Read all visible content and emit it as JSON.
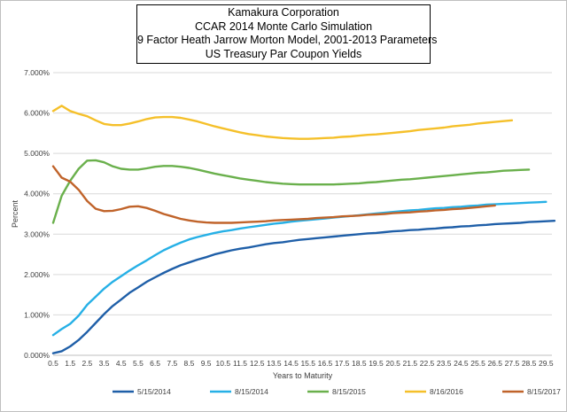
{
  "chart_data": {
    "type": "line",
    "title_lines": [
      "Kamakura Corporation",
      "CCAR 2014 Monte Carlo Simulation",
      "9 Factor Heath Jarrow Morton Model, 2001-2013 Parameters",
      "US Treasury Par Coupon Yields"
    ],
    "xlabel": "Years to Maturity",
    "ylabel": "Percent",
    "ylim": [
      0,
      7
    ],
    "yticks": [
      0,
      1,
      2,
      3,
      4,
      5,
      6,
      7
    ],
    "ytick_labels": [
      "0.000%",
      "1.000%",
      "2.000%",
      "3.000%",
      "4.000%",
      "5.000%",
      "6.000%",
      "7.000%"
    ],
    "xlim": [
      0.5,
      30
    ],
    "xticks": [
      0.5,
      1.5,
      2.5,
      3.5,
      4.5,
      5.5,
      6.5,
      7.5,
      8.5,
      9.5,
      10.5,
      11.5,
      12.5,
      13.5,
      14.5,
      15.5,
      16.5,
      17.5,
      18.5,
      19.5,
      20.5,
      21.5,
      22.5,
      23.5,
      24.5,
      25.5,
      26.5,
      27.5,
      28.5,
      29.5
    ],
    "xtick_labels": [
      "0.5",
      "1.5",
      "2.5",
      "3.5",
      "4.5",
      "5.5",
      "6.5",
      "7.5",
      "8.5",
      "9.5",
      "10.5",
      "11.5",
      "12.5",
      "13.5",
      "14.5",
      "15.5",
      "16.5",
      "17.5",
      "18.5",
      "19.5",
      "20.5",
      "21.5",
      "22.5",
      "23.5",
      "24.5",
      "25.5",
      "26.5",
      "27.5",
      "28.5",
      "29.5"
    ],
    "grid": "horizontal",
    "legend_position": "bottom",
    "series": [
      {
        "name": "5/15/2014",
        "color": "#1f5fa8",
        "points": [
          [
            0.5,
            0.05
          ],
          [
            1,
            0.1
          ],
          [
            1.5,
            0.22
          ],
          [
            2,
            0.38
          ],
          [
            2.5,
            0.58
          ],
          [
            3,
            0.8
          ],
          [
            3.5,
            1.02
          ],
          [
            4,
            1.22
          ],
          [
            4.5,
            1.38
          ],
          [
            5,
            1.55
          ],
          [
            5.5,
            1.68
          ],
          [
            6,
            1.82
          ],
          [
            6.5,
            1.93
          ],
          [
            7,
            2.04
          ],
          [
            7.5,
            2.14
          ],
          [
            8,
            2.23
          ],
          [
            8.5,
            2.3
          ],
          [
            9,
            2.37
          ],
          [
            9.5,
            2.43
          ],
          [
            10,
            2.5
          ],
          [
            10.5,
            2.55
          ],
          [
            11,
            2.6
          ],
          [
            11.5,
            2.64
          ],
          [
            12,
            2.67
          ],
          [
            12.5,
            2.71
          ],
          [
            13,
            2.75
          ],
          [
            13.5,
            2.78
          ],
          [
            14,
            2.8
          ],
          [
            14.5,
            2.83
          ],
          [
            15,
            2.86
          ],
          [
            15.5,
            2.88
          ],
          [
            16,
            2.9
          ],
          [
            16.5,
            2.92
          ],
          [
            17,
            2.94
          ],
          [
            17.5,
            2.96
          ],
          [
            18,
            2.98
          ],
          [
            18.5,
            3.0
          ],
          [
            19,
            3.02
          ],
          [
            19.5,
            3.03
          ],
          [
            20,
            3.05
          ],
          [
            20.5,
            3.07
          ],
          [
            21,
            3.08
          ],
          [
            21.5,
            3.1
          ],
          [
            22,
            3.11
          ],
          [
            22.5,
            3.13
          ],
          [
            23,
            3.14
          ],
          [
            23.5,
            3.16
          ],
          [
            24,
            3.17
          ],
          [
            24.5,
            3.19
          ],
          [
            25,
            3.2
          ],
          [
            25.5,
            3.22
          ],
          [
            26,
            3.23
          ],
          [
            26.5,
            3.25
          ],
          [
            27,
            3.26
          ],
          [
            27.5,
            3.27
          ],
          [
            28,
            3.28
          ],
          [
            28.5,
            3.3
          ],
          [
            29,
            3.31
          ],
          [
            29.5,
            3.32
          ],
          [
            30,
            3.33
          ]
        ]
      },
      {
        "name": "8/15/2014",
        "color": "#26b0e6",
        "points": [
          [
            0.5,
            0.5
          ],
          [
            1,
            0.65
          ],
          [
            1.5,
            0.78
          ],
          [
            2,
            0.98
          ],
          [
            2.5,
            1.25
          ],
          [
            3,
            1.45
          ],
          [
            3.5,
            1.65
          ],
          [
            4,
            1.82
          ],
          [
            4.5,
            1.96
          ],
          [
            5,
            2.1
          ],
          [
            5.5,
            2.23
          ],
          [
            6,
            2.35
          ],
          [
            6.5,
            2.48
          ],
          [
            7,
            2.6
          ],
          [
            7.5,
            2.7
          ],
          [
            8,
            2.79
          ],
          [
            8.5,
            2.87
          ],
          [
            9,
            2.93
          ],
          [
            9.5,
            2.98
          ],
          [
            10,
            3.03
          ],
          [
            10.5,
            3.07
          ],
          [
            11,
            3.1
          ],
          [
            11.5,
            3.14
          ],
          [
            12,
            3.17
          ],
          [
            12.5,
            3.2
          ],
          [
            13,
            3.23
          ],
          [
            13.5,
            3.26
          ],
          [
            14,
            3.28
          ],
          [
            14.5,
            3.31
          ],
          [
            15,
            3.33
          ],
          [
            15.5,
            3.35
          ],
          [
            16,
            3.37
          ],
          [
            16.5,
            3.39
          ],
          [
            17,
            3.41
          ],
          [
            17.5,
            3.43
          ],
          [
            18,
            3.45
          ],
          [
            18.5,
            3.47
          ],
          [
            19,
            3.49
          ],
          [
            19.5,
            3.51
          ],
          [
            20,
            3.53
          ],
          [
            20.5,
            3.55
          ],
          [
            21,
            3.57
          ],
          [
            21.5,
            3.59
          ],
          [
            22,
            3.6
          ],
          [
            22.5,
            3.62
          ],
          [
            23,
            3.64
          ],
          [
            23.5,
            3.65
          ],
          [
            24,
            3.67
          ],
          [
            24.5,
            3.68
          ],
          [
            25,
            3.7
          ],
          [
            25.5,
            3.71
          ],
          [
            26,
            3.73
          ],
          [
            26.5,
            3.74
          ],
          [
            27,
            3.75
          ],
          [
            27.5,
            3.76
          ],
          [
            28,
            3.77
          ],
          [
            28.5,
            3.78
          ],
          [
            29,
            3.79
          ],
          [
            29.5,
            3.8
          ]
        ]
      },
      {
        "name": "8/15/2015",
        "color": "#6ab04c",
        "points": [
          [
            0.5,
            3.28
          ],
          [
            1,
            3.95
          ],
          [
            1.5,
            4.32
          ],
          [
            2,
            4.62
          ],
          [
            2.5,
            4.82
          ],
          [
            3,
            4.83
          ],
          [
            3.5,
            4.78
          ],
          [
            4,
            4.68
          ],
          [
            4.5,
            4.62
          ],
          [
            5,
            4.6
          ],
          [
            5.5,
            4.6
          ],
          [
            6,
            4.63
          ],
          [
            6.5,
            4.67
          ],
          [
            7,
            4.69
          ],
          [
            7.5,
            4.69
          ],
          [
            8,
            4.67
          ],
          [
            8.5,
            4.64
          ],
          [
            9,
            4.6
          ],
          [
            9.5,
            4.55
          ],
          [
            10,
            4.5
          ],
          [
            10.5,
            4.46
          ],
          [
            11,
            4.42
          ],
          [
            11.5,
            4.38
          ],
          [
            12,
            4.35
          ],
          [
            12.5,
            4.32
          ],
          [
            13,
            4.29
          ],
          [
            13.5,
            4.27
          ],
          [
            14,
            4.25
          ],
          [
            14.5,
            4.24
          ],
          [
            15,
            4.23
          ],
          [
            15.5,
            4.23
          ],
          [
            16,
            4.23
          ],
          [
            16.5,
            4.23
          ],
          [
            17,
            4.23
          ],
          [
            17.5,
            4.24
          ],
          [
            18,
            4.25
          ],
          [
            18.5,
            4.26
          ],
          [
            19,
            4.28
          ],
          [
            19.5,
            4.29
          ],
          [
            20,
            4.31
          ],
          [
            20.5,
            4.33
          ],
          [
            21,
            4.35
          ],
          [
            21.5,
            4.36
          ],
          [
            22,
            4.38
          ],
          [
            22.5,
            4.4
          ],
          [
            23,
            4.42
          ],
          [
            23.5,
            4.44
          ],
          [
            24,
            4.46
          ],
          [
            24.5,
            4.48
          ],
          [
            25,
            4.5
          ],
          [
            25.5,
            4.52
          ],
          [
            26,
            4.53
          ],
          [
            26.5,
            4.55
          ],
          [
            27,
            4.57
          ],
          [
            27.5,
            4.58
          ],
          [
            28,
            4.59
          ],
          [
            28.5,
            4.6
          ]
        ]
      },
      {
        "name": "8/16/2016",
        "color": "#f5c02a",
        "points": [
          [
            0.5,
            6.05
          ],
          [
            1,
            6.18
          ],
          [
            1.5,
            6.05
          ],
          [
            2,
            5.98
          ],
          [
            2.5,
            5.92
          ],
          [
            3,
            5.82
          ],
          [
            3.5,
            5.73
          ],
          [
            4,
            5.7
          ],
          [
            4.5,
            5.7
          ],
          [
            5,
            5.74
          ],
          [
            5.5,
            5.79
          ],
          [
            6,
            5.85
          ],
          [
            6.5,
            5.89
          ],
          [
            7,
            5.9
          ],
          [
            7.5,
            5.9
          ],
          [
            8,
            5.88
          ],
          [
            8.5,
            5.84
          ],
          [
            9,
            5.79
          ],
          [
            9.5,
            5.73
          ],
          [
            10,
            5.67
          ],
          [
            10.5,
            5.62
          ],
          [
            11,
            5.57
          ],
          [
            11.5,
            5.52
          ],
          [
            12,
            5.48
          ],
          [
            12.5,
            5.45
          ],
          [
            13,
            5.42
          ],
          [
            13.5,
            5.4
          ],
          [
            14,
            5.38
          ],
          [
            14.5,
            5.37
          ],
          [
            15,
            5.36
          ],
          [
            15.5,
            5.36
          ],
          [
            16,
            5.37
          ],
          [
            16.5,
            5.38
          ],
          [
            17,
            5.39
          ],
          [
            17.5,
            5.41
          ],
          [
            18,
            5.42
          ],
          [
            18.5,
            5.44
          ],
          [
            19,
            5.46
          ],
          [
            19.5,
            5.47
          ],
          [
            20,
            5.49
          ],
          [
            20.5,
            5.51
          ],
          [
            21,
            5.53
          ],
          [
            21.5,
            5.55
          ],
          [
            22,
            5.58
          ],
          [
            22.5,
            5.6
          ],
          [
            23,
            5.62
          ],
          [
            23.5,
            5.64
          ],
          [
            24,
            5.67
          ],
          [
            24.5,
            5.69
          ],
          [
            25,
            5.71
          ],
          [
            25.5,
            5.74
          ],
          [
            26,
            5.76
          ],
          [
            26.5,
            5.78
          ],
          [
            27,
            5.8
          ],
          [
            27.5,
            5.82
          ]
        ]
      },
      {
        "name": "8/15/2017",
        "color": "#c0632a",
        "points": [
          [
            0.5,
            4.68
          ],
          [
            1,
            4.4
          ],
          [
            1.5,
            4.3
          ],
          [
            2,
            4.1
          ],
          [
            2.5,
            3.82
          ],
          [
            3,
            3.63
          ],
          [
            3.5,
            3.57
          ],
          [
            4,
            3.58
          ],
          [
            4.5,
            3.62
          ],
          [
            5,
            3.68
          ],
          [
            5.5,
            3.69
          ],
          [
            6,
            3.65
          ],
          [
            6.5,
            3.58
          ],
          [
            7,
            3.5
          ],
          [
            7.5,
            3.44
          ],
          [
            8,
            3.38
          ],
          [
            8.5,
            3.34
          ],
          [
            9,
            3.31
          ],
          [
            9.5,
            3.29
          ],
          [
            10,
            3.28
          ],
          [
            10.5,
            3.28
          ],
          [
            11,
            3.28
          ],
          [
            11.5,
            3.29
          ],
          [
            12,
            3.3
          ],
          [
            12.5,
            3.31
          ],
          [
            13,
            3.32
          ],
          [
            13.5,
            3.34
          ],
          [
            14,
            3.35
          ],
          [
            14.5,
            3.36
          ],
          [
            15,
            3.37
          ],
          [
            15.5,
            3.38
          ],
          [
            16,
            3.4
          ],
          [
            16.5,
            3.41
          ],
          [
            17,
            3.42
          ],
          [
            17.5,
            3.44
          ],
          [
            18,
            3.45
          ],
          [
            18.5,
            3.46
          ],
          [
            19,
            3.48
          ],
          [
            19.5,
            3.49
          ],
          [
            20,
            3.5
          ],
          [
            20.5,
            3.52
          ],
          [
            21,
            3.53
          ],
          [
            21.5,
            3.54
          ],
          [
            22,
            3.56
          ],
          [
            22.5,
            3.57
          ],
          [
            23,
            3.59
          ],
          [
            23.5,
            3.6
          ],
          [
            24,
            3.62
          ],
          [
            24.5,
            3.63
          ],
          [
            25,
            3.65
          ],
          [
            25.5,
            3.67
          ],
          [
            26,
            3.69
          ],
          [
            26.5,
            3.71
          ]
        ]
      }
    ]
  }
}
